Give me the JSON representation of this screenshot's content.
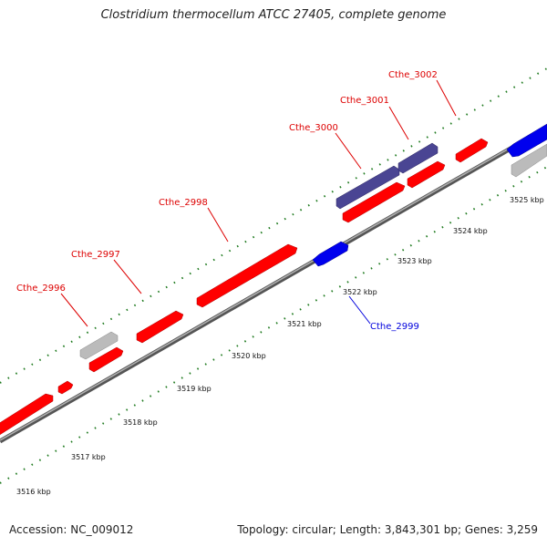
{
  "title": "Clostridium thermocellum ATCC 27405, complete genome",
  "footer": {
    "accession": "Accession: NC_009012",
    "stats": "Topology: circular; Length: 3,843,301 bp; Genes: 3,259"
  },
  "colors": {
    "forward_gene": "#ff0000",
    "reverse_gene": "#0000ee",
    "highlight_gene": "#4a4593",
    "pseudo_gene": "#bbbbbb",
    "backbone": "#7a7a7a",
    "ticks": "#1e7a1e",
    "label_red": "#dd0000",
    "label_blue": "#0000dd"
  },
  "kbp_ticks": [
    "3516 kbp",
    "3517 kbp",
    "3518 kbp",
    "3519 kbp",
    "3520 kbp",
    "3521 kbp",
    "3522 kbp",
    "3523 kbp",
    "3524 kbp",
    "3525 kbp"
  ],
  "gene_labels": [
    {
      "text": "Cthe_2996",
      "color": "red"
    },
    {
      "text": "Cthe_2997",
      "color": "red"
    },
    {
      "text": "Cthe_2998",
      "color": "red"
    },
    {
      "text": "Cthe_2999",
      "color": "blue"
    },
    {
      "text": "Cthe_3000",
      "color": "red"
    },
    {
      "text": "Cthe_3001",
      "color": "red"
    },
    {
      "text": "Cthe_3002",
      "color": "red"
    }
  ]
}
